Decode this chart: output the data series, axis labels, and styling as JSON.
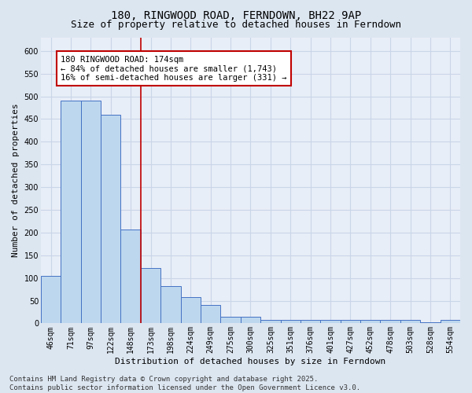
{
  "title1": "180, RINGWOOD ROAD, FERNDOWN, BH22 9AP",
  "title2": "Size of property relative to detached houses in Ferndown",
  "xlabel": "Distribution of detached houses by size in Ferndown",
  "ylabel": "Number of detached properties",
  "categories": [
    "46sqm",
    "71sqm",
    "97sqm",
    "122sqm",
    "148sqm",
    "173sqm",
    "198sqm",
    "224sqm",
    "249sqm",
    "275sqm",
    "300sqm",
    "325sqm",
    "351sqm",
    "376sqm",
    "401sqm",
    "427sqm",
    "452sqm",
    "478sqm",
    "503sqm",
    "528sqm",
    "554sqm"
  ],
  "values": [
    105,
    490,
    490,
    460,
    207,
    122,
    82,
    57,
    40,
    15,
    15,
    8,
    8,
    8,
    8,
    8,
    8,
    8,
    8,
    3,
    8
  ],
  "bar_color": "#bdd7ee",
  "bar_edge_color": "#4472c4",
  "vline_x_idx": 5,
  "vline_color": "#c00000",
  "annotation_text": "180 RINGWOOD ROAD: 174sqm\n← 84% of detached houses are smaller (1,743)\n16% of semi-detached houses are larger (331) →",
  "annotation_box_color": "#ffffff",
  "annotation_box_edge_color": "#c00000",
  "grid_color": "#c9d5e8",
  "background_color": "#dce6f1",
  "plot_bg_color": "#e8eef7",
  "ylim": [
    0,
    630
  ],
  "yticks": [
    0,
    50,
    100,
    150,
    200,
    250,
    300,
    350,
    400,
    450,
    500,
    550,
    600
  ],
  "footer": "Contains HM Land Registry data © Crown copyright and database right 2025.\nContains public sector information licensed under the Open Government Licence v3.0.",
  "title_fontsize": 10,
  "subtitle_fontsize": 9,
  "axis_label_fontsize": 8,
  "tick_fontsize": 7,
  "annotation_fontsize": 7.5,
  "footer_fontsize": 6.5
}
